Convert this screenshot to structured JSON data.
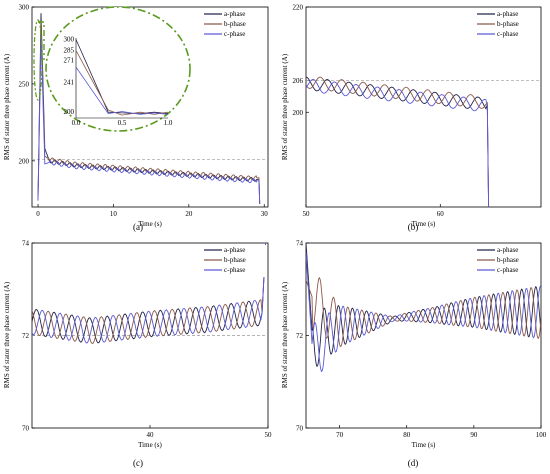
{
  "colors": {
    "a": "#24244a",
    "b": "#8c5a4a",
    "c": "#5b5bd8",
    "inset": "#5a9a1e",
    "ref": "#9a9a9a"
  },
  "legend_labels": [
    "a-phase",
    "b-phase",
    "c-phase"
  ],
  "chart_data": [
    {
      "type": "line",
      "caption": "(a)",
      "xlabel": "Time (s)",
      "ylabel": "RMS of stator three phase current (A)",
      "xlim": [
        -0.8,
        30.5
      ],
      "ylim": [
        170,
        300
      ],
      "xticks": [
        0,
        10,
        20,
        30
      ],
      "yticks": [
        200,
        250,
        300
      ],
      "reference_y": 201,
      "legend": [
        "a-phase",
        "b-phase",
        "c-phase"
      ],
      "series": [
        {
          "name": "a-phase",
          "points": [
            [
              0,
              175
            ],
            [
              0.4,
              296
            ],
            [
              0.9,
              208
            ],
            [
              1.5,
              200
            ],
            [
              5,
              197
            ],
            [
              10,
              195
            ],
            [
              15,
              193
            ],
            [
              20,
              191
            ],
            [
              25,
              189
            ],
            [
              28,
              188
            ],
            [
              29.3,
              188
            ],
            [
              29.4,
              172
            ]
          ]
        },
        {
          "name": "b-phase",
          "points": [
            [
              0,
              176
            ],
            [
              0.4,
              290
            ],
            [
              0.9,
              203
            ],
            [
              1.5,
              201
            ],
            [
              5,
              198
            ],
            [
              10,
              196
            ],
            [
              15,
              194
            ],
            [
              20,
              192
            ],
            [
              25,
              190
            ],
            [
              28,
              189
            ],
            [
              29.3,
              189
            ],
            [
              29.4,
              172
            ]
          ]
        },
        {
          "name": "c-phase",
          "points": [
            [
              0,
              174
            ],
            [
              0.4,
              280
            ],
            [
              0.9,
              198
            ],
            [
              1.5,
              199
            ],
            [
              5,
              196
            ],
            [
              10,
              194
            ],
            [
              15,
              192
            ],
            [
              20,
              190
            ],
            [
              25,
              188
            ],
            [
              28,
              187
            ],
            [
              29.3,
              187
            ],
            [
              29.4,
              172
            ]
          ]
        }
      ],
      "inset": {
        "xlim": [
          0,
          1.0
        ],
        "ylim": [
          192,
          302
        ],
        "xticks": [
          "0.0",
          "0.5",
          "1.0"
        ],
        "yticks": [
          "300",
          "285",
          "271",
          "241",
          "200"
        ],
        "series": [
          {
            "name": "a-phase",
            "points": [
              [
                0,
                300
              ],
              [
                0.35,
                200
              ],
              [
                0.5,
                199
              ],
              [
                0.7,
                198
              ],
              [
                0.85,
                200
              ],
              [
                1.0,
                198
              ]
            ]
          },
          {
            "name": "b-phase",
            "points": [
              [
                0,
                285
              ],
              [
                0.35,
                203
              ],
              [
                0.5,
                196
              ],
              [
                0.7,
                200
              ],
              [
                0.85,
                197
              ],
              [
                1.0,
                200
              ]
            ]
          },
          {
            "name": "c-phase",
            "points": [
              [
                0,
                262
              ],
              [
                0.35,
                198
              ],
              [
                0.5,
                201
              ],
              [
                0.7,
                197
              ],
              [
                0.85,
                199
              ],
              [
                1.0,
                197
              ]
            ]
          }
        ]
      }
    },
    {
      "type": "line",
      "caption": "(b)",
      "xlabel": "Time (s)",
      "ylabel": "RMS of stator three phase current (A)",
      "xlim": [
        50,
        67.5
      ],
      "ylim": [
        182,
        220
      ],
      "xticks": [
        50,
        60
      ],
      "yticks": [
        200,
        206,
        220
      ],
      "reference_y": 206,
      "legend": [
        "a-phase",
        "b-phase",
        "c-phase"
      ],
      "series": [
        {
          "name": "a-phase",
          "points": [
            [
              50,
              205.5
            ],
            [
              55,
              204
            ],
            [
              60,
              202.5
            ],
            [
              63.5,
              201.5
            ],
            [
              63.6,
              182
            ]
          ]
        },
        {
          "name": "b-phase",
          "points": [
            [
              50,
              205.8
            ],
            [
              55,
              204.3
            ],
            [
              60,
              202.8
            ],
            [
              63.5,
              201.8
            ],
            [
              63.6,
              182
            ]
          ]
        },
        {
          "name": "c-phase",
          "points": [
            [
              50,
              205.2
            ],
            [
              55,
              203.7
            ],
            [
              60,
              202.2
            ],
            [
              63.5,
              201.2
            ],
            [
              63.6,
              182
            ]
          ]
        }
      ]
    },
    {
      "type": "line",
      "caption": "(c)",
      "xlabel": "Time (s)",
      "ylabel": "RMS of stator three phase current (A)",
      "xlim": [
        30,
        50
      ],
      "ylim": [
        70,
        74
      ],
      "xticks": [
        40,
        50
      ],
      "yticks": [
        70,
        72,
        74
      ],
      "reference_y": 72,
      "legend": [
        "a-phase",
        "b-phase",
        "c-phase"
      ],
      "series": [
        {
          "name": "a-phase",
          "points": [
            [
              30,
              72.3
            ],
            [
              35,
              72.1
            ],
            [
              40,
              72.25
            ],
            [
              45,
              72.35
            ],
            [
              49.5,
              72.5
            ],
            [
              49.8,
              74
            ]
          ]
        },
        {
          "name": "b-phase",
          "points": [
            [
              30,
              72.3
            ],
            [
              35,
              72.1
            ],
            [
              40,
              72.25
            ],
            [
              45,
              72.35
            ],
            [
              49.5,
              72.5
            ],
            [
              49.8,
              74
            ]
          ]
        },
        {
          "name": "c-phase",
          "points": [
            [
              30,
              72.3
            ],
            [
              35,
              72.1
            ],
            [
              40,
              72.25
            ],
            [
              45,
              72.35
            ],
            [
              49.5,
              72.5
            ],
            [
              49.8,
              74
            ]
          ]
        }
      ]
    },
    {
      "type": "line",
      "caption": "(d)",
      "xlabel": "Time (s)",
      "ylabel": "RMS of stator three phase current (A)",
      "xlim": [
        65,
        100
      ],
      "ylim": [
        70,
        74
      ],
      "xticks": [
        70,
        80,
        90,
        100
      ],
      "yticks": [
        70,
        72,
        74
      ],
      "reference_y": null,
      "legend": [
        "a-phase",
        "b-phase",
        "c-phase"
      ],
      "series": [
        {
          "name": "a-phase",
          "points": [
            [
              65,
              74
            ],
            [
              66,
              71.9
            ],
            [
              70,
              72.2
            ],
            [
              80,
              72.4
            ],
            [
              90,
              72.5
            ],
            [
              100,
              72.5
            ]
          ]
        },
        {
          "name": "b-phase",
          "points": [
            [
              65,
              73.2
            ],
            [
              66,
              72.8
            ],
            [
              70,
              72.2
            ],
            [
              80,
              72.4
            ],
            [
              90,
              72.5
            ],
            [
              100,
              72.5
            ]
          ]
        },
        {
          "name": "c-phase",
          "points": [
            [
              65,
              73.8
            ],
            [
              66,
              71.6
            ],
            [
              70,
              72.2
            ],
            [
              80,
              72.4
            ],
            [
              90,
              72.5
            ],
            [
              100,
              72.5
            ]
          ]
        }
      ]
    }
  ]
}
